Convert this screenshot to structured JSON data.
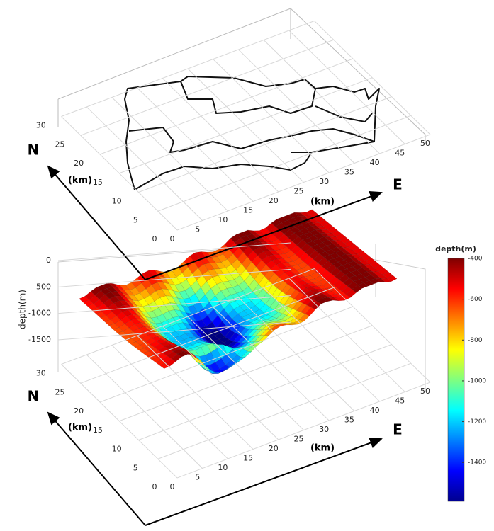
{
  "top_panel": {
    "north": "N",
    "east": "E",
    "x_label": "(km)",
    "y_label": "(km)",
    "xlim": [
      0,
      50
    ],
    "xticks": [
      0,
      5,
      10,
      15,
      20,
      25,
      30,
      35,
      40,
      45,
      50
    ],
    "ylim": [
      0,
      30
    ],
    "yticks": [
      0,
      5,
      10,
      15,
      20,
      25,
      30
    ]
  },
  "bottom_panel": {
    "north": "N",
    "east": "E",
    "x_label": "(km)",
    "y_label": "(km)",
    "z_label": "depth(m)",
    "xlim": [
      0,
      50
    ],
    "xticks": [
      0,
      5,
      10,
      15,
      20,
      25,
      30,
      35,
      40,
      45,
      50
    ],
    "ylim": [
      0,
      30
    ],
    "yticks": [
      0,
      5,
      10,
      15,
      20,
      25,
      30
    ],
    "zlim": [
      -1800,
      0
    ],
    "zticks": [
      0,
      -500,
      -1000,
      -1500
    ]
  },
  "colorbar": {
    "title": "depth(m)",
    "lim": [
      -1590,
      -400
    ],
    "ticks": [
      -400,
      -600,
      -800,
      -1000,
      -1200,
      -1400
    ]
  }
}
